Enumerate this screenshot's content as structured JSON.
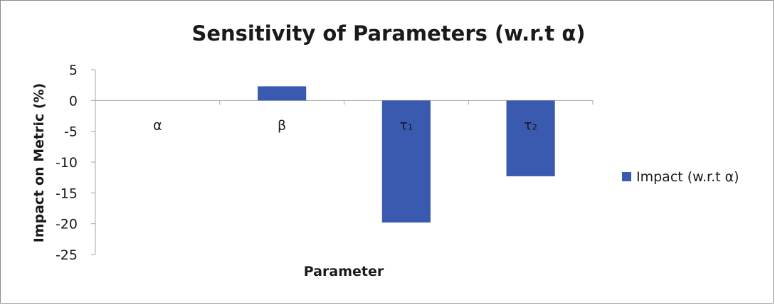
{
  "chart_data": {
    "type": "bar",
    "title": "Sensitivity of Parameters (w.r.t α)",
    "xlabel": "Parameter",
    "ylabel": "Impact on Metric (%)",
    "categories": [
      "α",
      "β",
      "τ₁",
      "τ₂"
    ],
    "series": [
      {
        "name": "Impact (w.r.t α)",
        "values": [
          0,
          2.3,
          -19.8,
          -12.3
        ]
      }
    ],
    "ylim": [
      -25,
      5
    ],
    "yticks": [
      "5",
      "0",
      "-5",
      "-10",
      "-15",
      "-20",
      "-25"
    ],
    "grid": false,
    "legend": "right",
    "bar_color": "#3a5ab0"
  }
}
